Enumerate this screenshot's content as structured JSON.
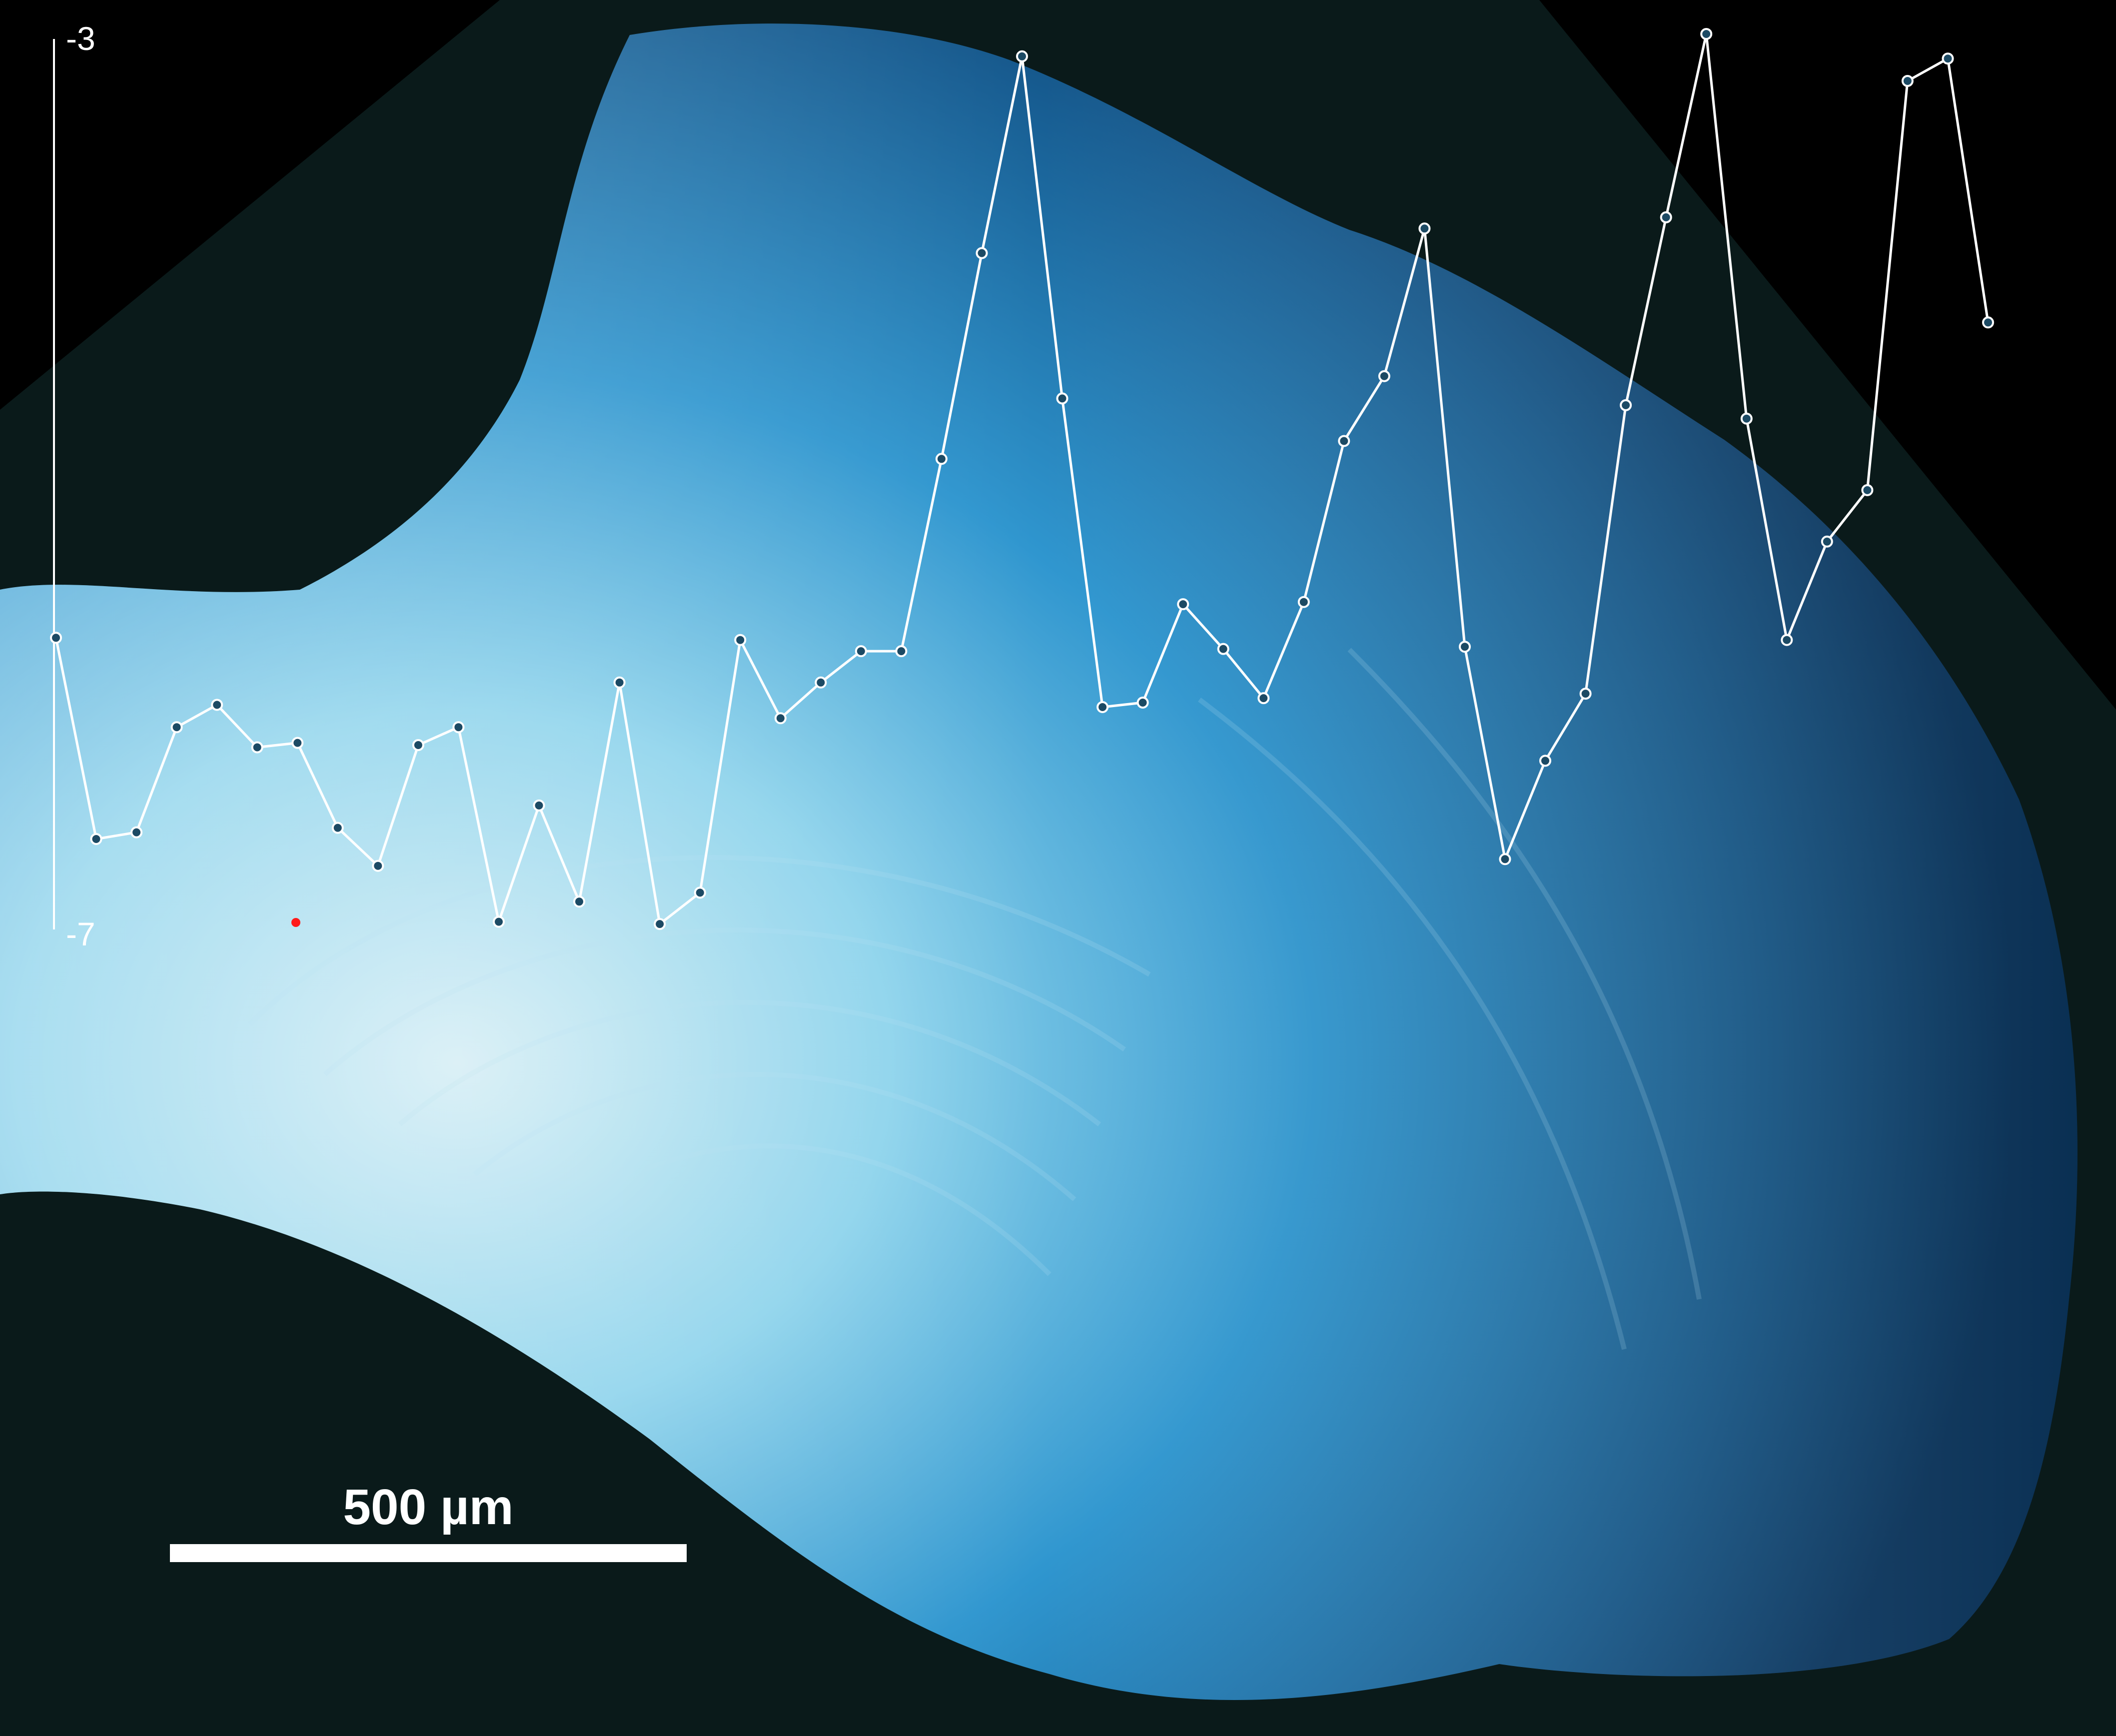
{
  "colors": {
    "background": "#000000",
    "specimen_core": "#8fd4ec",
    "specimen_mid": "#2f96cf",
    "specimen_edge": "#0d3f6e",
    "line": "#ffffff",
    "marker_fill": "#1c4a64",
    "start_marker": "#ff1a1a",
    "scale_bar": "#ffffff"
  },
  "scale_bar": {
    "label": "500 µm"
  },
  "chart_data": {
    "type": "line",
    "series": [
      {
        "values": [
          -5.7,
          -6.6,
          -6.57,
          -6.1,
          -6.0,
          -6.19,
          -6.17,
          -6.55,
          -6.72,
          -6.18,
          -6.1,
          -6.97,
          -6.45,
          -6.88,
          -5.9,
          -6.98,
          -6.84,
          -5.71,
          -6.06,
          -5.9,
          -5.76,
          -5.76,
          -4.9,
          -3.98,
          -3.1,
          -4.63,
          -6.01,
          -5.99,
          -5.55,
          -5.75,
          -5.97,
          -5.54,
          -4.82,
          -4.53,
          -3.87,
          -5.74,
          -6.69,
          -6.25,
          -5.95,
          -4.66,
          -3.82,
          -3.0,
          -4.72,
          -5.71,
          -5.27,
          -5.04,
          -3.21,
          -3.11,
          -4.29
        ]
      }
    ],
    "y_ticks": [
      "-3",
      "-7"
    ],
    "ylim": [
      -7,
      -3
    ],
    "xlim": [
      0,
      48
    ],
    "xlabel": "",
    "ylabel": "",
    "grid": false
  }
}
